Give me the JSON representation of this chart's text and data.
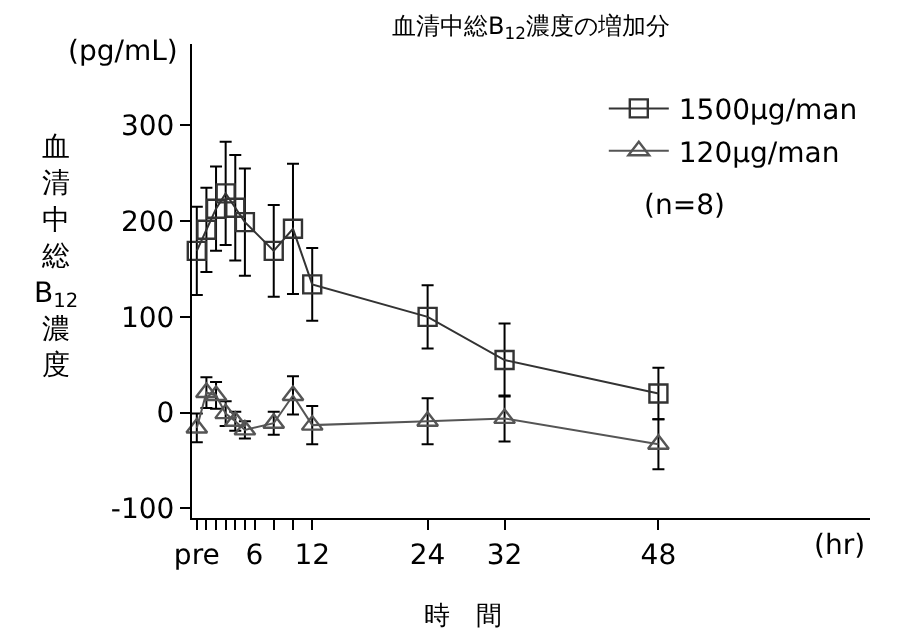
{
  "chart_data": {
    "type": "line",
    "title": "血清中総B$_{12}$濃度の増加分",
    "xlabel": "時　間",
    "ylabel": "血清中総B$_{12}$濃度",
    "annotations": [
      "(pg/mL)",
      "(hr)",
      "(n=8)"
    ],
    "x": [
      0,
      1,
      2,
      3,
      4,
      5,
      8,
      10,
      12,
      24,
      32,
      48
    ],
    "series": [
      {
        "name": "1500μg/man",
        "color": "#333333",
        "marker": "square",
        "values": [
          169,
          191,
          213,
          229,
          214,
          199,
          169,
          192,
          134,
          100,
          55,
          20
        ],
        "errors": [
          46,
          44,
          44,
          54,
          55,
          56,
          48,
          68,
          38,
          33,
          38,
          27
        ]
      },
      {
        "name": "120μg/man",
        "color": "#555555",
        "marker": "triangle",
        "values": [
          -16,
          21,
          18,
          -1,
          -9,
          -18,
          -11,
          18,
          -13,
          -9,
          -6,
          -33
        ],
        "errors": [
          15,
          16,
          14,
          13,
          10,
          9,
          12,
          20,
          20,
          24,
          24,
          26
        ]
      }
    ],
    "xlim": [
      -0.5,
      70
    ],
    "xticks": [
      {
        "value": 0,
        "label": "pre"
      },
      {
        "value": 1,
        "label": null
      },
      {
        "value": 2,
        "label": null
      },
      {
        "value": 3,
        "label": null
      },
      {
        "value": 4,
        "label": null
      },
      {
        "value": 5,
        "label": null
      },
      6,
      {
        "value": 8,
        "label": null
      },
      {
        "value": 10,
        "label": null
      },
      12,
      24,
      32,
      48
    ],
    "ylim": [
      -110,
      385
    ],
    "yticks": [
      -100,
      0,
      100,
      200,
      300
    ],
    "legend": "top right",
    "line_style": "solid"
  }
}
